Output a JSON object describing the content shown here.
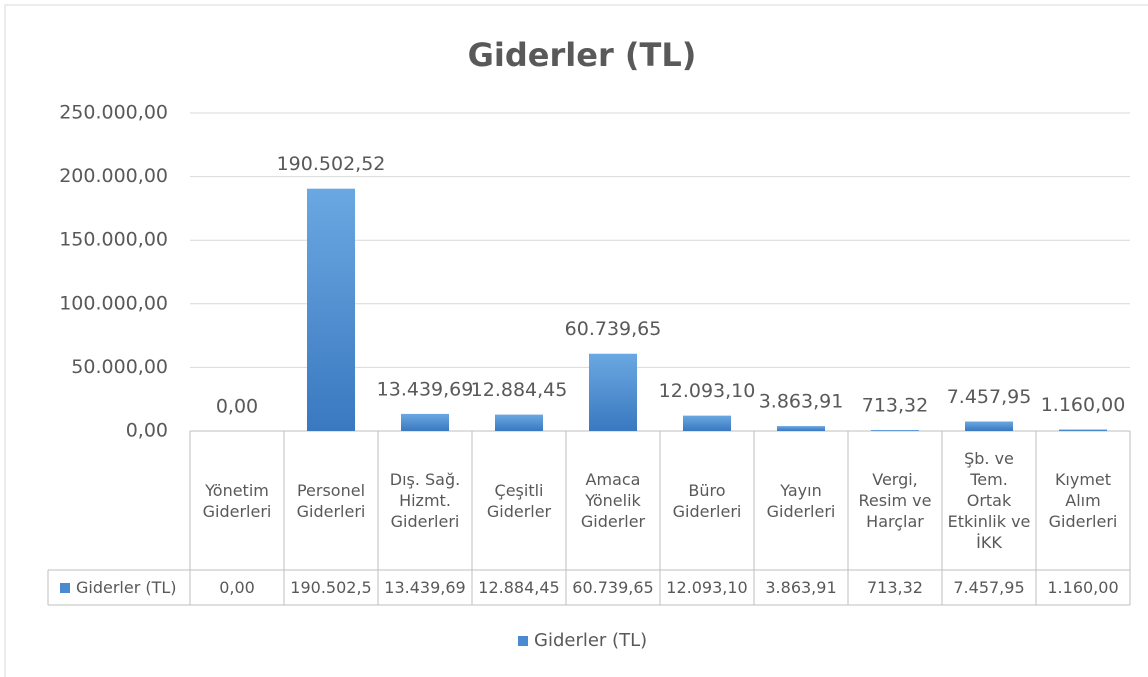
{
  "chart_data": {
    "type": "bar",
    "title": "Giderler (TL)",
    "categories": [
      "Yönetim Giderleri",
      "Personel Giderleri",
      "Dış. Sağ. Hizmt. Giderleri",
      "Çeşitli Giderler",
      "Amaca Yönelik Giderler",
      "Büro Giderleri",
      "Yayın Giderleri",
      "Vergi, Resim ve Harçlar",
      "Şb. ve Tem. Ortak Etkinlik ve İKK",
      "Kıymet Alım Giderleri"
    ],
    "series": [
      {
        "name": "Giderler (TL)",
        "color": "#4a8ad0",
        "values": [
          0,
          190502.52,
          13439.69,
          12884.45,
          60739.65,
          12093.1,
          3863.91,
          713.32,
          7457.95,
          1160.0
        ],
        "value_labels": [
          "0,00",
          "190.502,52",
          "13.439,69",
          "12.884,45",
          "60.739,65",
          "12.093,10",
          "3.863,91",
          "713,32",
          "7.457,95",
          "1.160,00"
        ],
        "table_labels": [
          "0,00",
          "190.502,5",
          "13.439,69",
          "12.884,45",
          "60.739,65",
          "12.093,10",
          "3.863,91",
          "713,32",
          "7.457,95",
          "1.160,00"
        ]
      }
    ],
    "ylim": [
      0,
      250000
    ],
    "yticks": [
      {
        "value": 0,
        "label": "0,00"
      },
      {
        "value": 50000,
        "label": "50.000,00"
      },
      {
        "value": 100000,
        "label": "100.000,00"
      },
      {
        "value": 150000,
        "label": "150.000,00"
      },
      {
        "value": 200000,
        "label": "200.000,00"
      },
      {
        "value": 250000,
        "label": "250.000,00"
      }
    ],
    "grid": true,
    "legend": "bottom"
  }
}
